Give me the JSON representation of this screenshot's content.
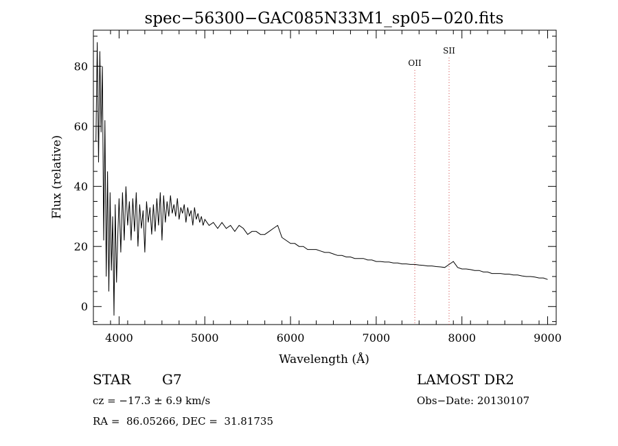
{
  "chart_data": {
    "type": "line",
    "title": "spec−56300−GAC085N33M1_sp05−020.fits",
    "xlabel": "Wavelength (Å)",
    "ylabel": "Flux (relative)",
    "xlim": [
      3700,
      9100
    ],
    "ylim": [
      -6,
      92
    ],
    "x_ticks": [
      4000,
      5000,
      6000,
      7000,
      8000,
      9000
    ],
    "y_ticks": [
      0,
      20,
      40,
      60,
      80
    ],
    "x_tick_labels": [
      "4000",
      "5000",
      "6000",
      "7000",
      "8000",
      "9000"
    ],
    "y_tick_labels": [
      "0",
      "20",
      "40",
      "60",
      "80"
    ],
    "grid": false,
    "series": [
      {
        "x": [
          3730,
          3745,
          3760,
          3775,
          3790,
          3805,
          3820,
          3835,
          3850,
          3865,
          3880,
          3895,
          3910,
          3925,
          3940,
          3955,
          3970,
          3985,
          4000,
          4020,
          4040,
          4060,
          4080,
          4100,
          4120,
          4140,
          4160,
          4180,
          4200,
          4220,
          4240,
          4260,
          4280,
          4300,
          4320,
          4340,
          4360,
          4380,
          4400,
          4420,
          4440,
          4460,
          4480,
          4500,
          4520,
          4540,
          4560,
          4580,
          4600,
          4620,
          4640,
          4660,
          4680,
          4700,
          4720,
          4740,
          4760,
          4780,
          4800,
          4820,
          4840,
          4860,
          4880,
          4900,
          4920,
          4940,
          4960,
          4980,
          5000,
          5050,
          5100,
          5150,
          5200,
          5250,
          5300,
          5350,
          5400,
          5450,
          5500,
          5550,
          5600,
          5650,
          5700,
          5750,
          5800,
          5850,
          5900,
          5950,
          6000,
          6050,
          6100,
          6150,
          6200,
          6250,
          6300,
          6350,
          6400,
          6450,
          6500,
          6550,
          6600,
          6650,
          6700,
          6750,
          6800,
          6850,
          6900,
          6950,
          7000,
          7050,
          7100,
          7150,
          7200,
          7250,
          7300,
          7350,
          7400,
          7450,
          7500,
          7550,
          7600,
          7650,
          7700,
          7750,
          7800,
          7850,
          7900,
          7950,
          8000,
          8050,
          8100,
          8150,
          8200,
          8250,
          8300,
          8350,
          8400,
          8450,
          8500,
          8550,
          8600,
          8650,
          8700,
          8750,
          8800,
          8850,
          8900,
          8950,
          9000
        ],
        "y": [
          55,
          88,
          48,
          85,
          58,
          80,
          22,
          62,
          10,
          45,
          5,
          38,
          12,
          30,
          -3,
          34,
          8,
          24,
          36,
          18,
          38,
          22,
          40,
          27,
          35,
          22,
          36,
          25,
          38,
          20,
          34,
          26,
          32,
          18,
          35,
          28,
          33,
          24,
          34,
          25,
          36,
          27,
          38,
          22,
          37,
          28,
          35,
          30,
          37,
          31,
          34,
          30,
          36,
          29,
          33,
          31,
          34,
          28,
          33,
          30,
          32,
          27,
          33,
          29,
          31,
          28,
          30,
          27,
          29,
          27,
          28,
          26,
          28,
          26,
          27,
          25,
          27,
          26,
          24,
          25,
          25,
          24,
          24,
          25,
          26,
          27,
          23,
          22,
          21,
          21,
          20,
          20,
          19,
          19,
          19,
          18.5,
          18,
          18,
          17.5,
          17,
          17,
          16.5,
          16.5,
          16,
          16,
          16,
          15.5,
          15.5,
          15,
          15,
          14.8,
          14.8,
          14.5,
          14.5,
          14.2,
          14.2,
          14,
          14,
          13.8,
          13.7,
          13.5,
          13.5,
          13.3,
          13.2,
          13,
          14,
          15,
          13,
          12.5,
          12.5,
          12.3,
          12,
          12,
          11.5,
          11.5,
          11,
          11,
          11,
          10.8,
          10.8,
          10.5,
          10.5,
          10.2,
          10,
          10,
          9.8,
          9.5,
          9.5,
          9
        ]
      }
    ],
    "lines": [
      {
        "label": "OII",
        "x": 7450
      },
      {
        "label": "SII",
        "x": 7850
      }
    ]
  },
  "info": {
    "class": "STAR",
    "subclass": "G7",
    "survey": "LAMOST DR2",
    "cz": "cz = −17.3 ± 6.9 km/s",
    "obs_date": "Obs−Date: 20130107",
    "radec": "RA =  86.05266, DEC =  31.81735"
  }
}
